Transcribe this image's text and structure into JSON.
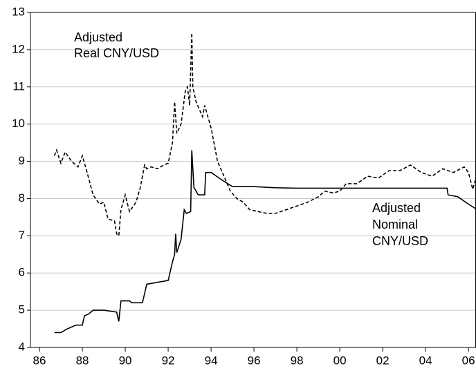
{
  "chart_data": {
    "type": "line",
    "annotations": [
      {
        "lines": [
          "Adjusted",
          "Real CNY/USD"
        ]
      },
      {
        "lines": [
          "Adjusted",
          "Nominal",
          "CNY/USD"
        ]
      }
    ],
    "series": [
      {
        "color": "#000000",
        "dash": true,
        "x": [
          1986.7,
          1986.8,
          1987.0,
          1987.2,
          1987.5,
          1987.8,
          1988.0,
          1988.2,
          1988.5,
          1988.8,
          1989.0,
          1989.2,
          1989.5,
          1989.6,
          1989.7,
          1989.8,
          1990.0,
          1990.2,
          1990.5,
          1990.7,
          1990.9,
          1991.0,
          1991.2,
          1991.5,
          1991.8,
          1992.0,
          1992.2,
          1992.3,
          1992.4,
          1992.6,
          1992.8,
          1992.9,
          1993.0,
          1993.1,
          1993.15,
          1993.3,
          1993.6,
          1993.7,
          1994.0,
          1994.3,
          1994.6,
          1994.9,
          1995.2,
          1995.5,
          1995.8,
          1996.2,
          1996.6,
          1997.0,
          1997.5,
          1998.0,
          1998.5,
          1999.0,
          1999.3,
          1999.7,
          2000.0,
          2000.3,
          2000.8,
          2001.3,
          2001.8,
          2002.3,
          2002.8,
          2003.3,
          2003.8,
          2004.3,
          2004.8,
          2005.3,
          2005.8,
          2006.0,
          2006.2,
          2006.35
        ],
        "values": [
          9.15,
          9.3,
          8.95,
          9.25,
          9.0,
          8.85,
          9.15,
          8.75,
          8.1,
          7.85,
          7.9,
          7.45,
          7.4,
          7.05,
          7.0,
          7.7,
          8.1,
          7.65,
          7.9,
          8.3,
          8.9,
          8.8,
          8.85,
          8.8,
          8.9,
          8.95,
          9.5,
          10.6,
          9.75,
          10.0,
          10.9,
          11.0,
          10.5,
          12.45,
          11.0,
          10.6,
          10.2,
          10.5,
          9.9,
          9.0,
          8.6,
          8.2,
          8.0,
          7.9,
          7.7,
          7.65,
          7.6,
          7.6,
          7.7,
          7.8,
          7.9,
          8.05,
          8.2,
          8.15,
          8.2,
          8.4,
          8.4,
          8.6,
          8.55,
          8.75,
          8.75,
          8.9,
          8.7,
          8.6,
          8.8,
          8.7,
          8.85,
          8.7,
          8.25,
          8.55
        ]
      },
      {
        "color": "#000000",
        "dash": false,
        "x": [
          1986.7,
          1987.0,
          1987.3,
          1987.7,
          1988.0,
          1988.1,
          1988.3,
          1988.5,
          1989.0,
          1989.6,
          1989.7,
          1989.8,
          1990.2,
          1990.3,
          1990.8,
          1990.9,
          1991.0,
          1991.5,
          1992.0,
          1992.2,
          1992.3,
          1992.35,
          1992.4,
          1992.6,
          1992.75,
          1992.85,
          1993.05,
          1993.1,
          1993.2,
          1993.4,
          1993.7,
          1993.75,
          1994.0,
          1994.5,
          1995.0,
          1996.0,
          1997.0,
          1998.0,
          2005.0,
          2005.05,
          2005.5,
          2006.0,
          2006.35
        ],
        "values": [
          4.4,
          4.4,
          4.5,
          4.6,
          4.6,
          4.85,
          4.9,
          5.0,
          5.0,
          4.95,
          4.7,
          5.25,
          5.25,
          5.2,
          5.2,
          5.45,
          5.7,
          5.75,
          5.8,
          6.3,
          6.5,
          7.05,
          6.55,
          6.9,
          7.7,
          7.6,
          7.65,
          9.3,
          8.3,
          8.1,
          8.1,
          8.7,
          8.7,
          8.5,
          8.32,
          8.32,
          8.29,
          8.28,
          8.28,
          8.1,
          8.05,
          7.85,
          7.72
        ]
      }
    ],
    "xlim": [
      1985.58,
      2006.35
    ],
    "xticks": [
      {
        "value": 1986,
        "label": "86"
      },
      {
        "value": 1988,
        "label": "88"
      },
      {
        "value": 1990,
        "label": "90"
      },
      {
        "value": 1992,
        "label": "92"
      },
      {
        "value": 1994,
        "label": "94"
      },
      {
        "value": 1996,
        "label": "96"
      },
      {
        "value": 1998,
        "label": "98"
      },
      {
        "value": 2000,
        "label": "00"
      },
      {
        "value": 2002,
        "label": "02"
      },
      {
        "value": 2004,
        "label": "04"
      },
      {
        "value": 2006,
        "label": "06"
      }
    ],
    "ylim": [
      4,
      13
    ],
    "yticks": [
      4,
      5,
      6,
      7,
      8,
      9,
      10,
      11,
      12,
      13
    ],
    "grid": true
  }
}
